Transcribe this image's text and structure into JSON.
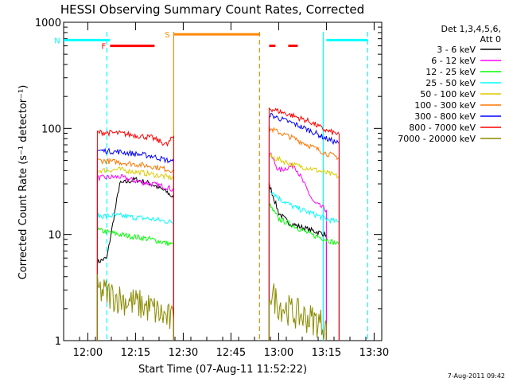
{
  "chart_data": {
    "type": "line",
    "title": "HESSI Observing Summary Count Rates, Corrected",
    "xlabel": "Start Time (07-Aug-11 11:52:22)",
    "ylabel": "Corrected Count Rate (s⁻¹ detector⁻¹)",
    "yscale": "log",
    "ylim": [
      1,
      1000
    ],
    "xlim_minutes_after_start": [
      0,
      100
    ],
    "x_ticks": [
      "12:00",
      "12:15",
      "12:30",
      "12:45",
      "13:00",
      "13:15",
      "13:30"
    ],
    "y_ticks": [
      "1",
      "10",
      "100",
      "1000"
    ],
    "legend_header": [
      "Det 1,3,4,5,6,",
      "Att 0"
    ],
    "legend_position": "right",
    "timestamp": "7-Aug-2011 09:42",
    "series": [
      {
        "name": "3 - 6 keV",
        "color": "#000000",
        "segments": [
          {
            "x": [
              "12:03",
              "12:06",
              "12:10",
              "12:15",
              "12:20",
              "12:25",
              "12:27"
            ],
            "y": [
              5.5,
              6,
              30,
              33,
              30,
              25,
              22
            ]
          },
          {
            "x": [
              "12:57",
              "13:00",
              "13:03",
              "13:06",
              "13:10",
              "13:15"
            ],
            "y": [
              30,
              16,
              13,
              12,
              11,
              10
            ]
          }
        ]
      },
      {
        "name": "6 - 12 keV",
        "color": "#ff00ff",
        "segments": [
          {
            "x": [
              "12:03",
              "12:10",
              "12:15",
              "12:20",
              "12:25",
              "12:27"
            ],
            "y": [
              34,
              35,
              32,
              30,
              28,
              26
            ]
          },
          {
            "x": [
              "12:57",
              "13:00",
              "13:05",
              "13:08",
              "13:11",
              "13:15"
            ],
            "y": [
              60,
              40,
              45,
              30,
              20,
              17
            ]
          }
        ]
      },
      {
        "name": "12 - 25 keV",
        "color": "#00ff00",
        "segments": [
          {
            "x": [
              "12:03",
              "12:10",
              "12:20",
              "12:27"
            ],
            "y": [
              11,
              10,
              9,
              8
            ]
          },
          {
            "x": [
              "12:57",
              "13:00",
              "13:05",
              "13:10",
              "13:15",
              "13:19"
            ],
            "y": [
              19,
              14,
              12,
              10,
              9,
              8
            ]
          }
        ]
      },
      {
        "name": "25 - 50 keV",
        "color": "#00ffff",
        "segments": [
          {
            "x": [
              "12:03",
              "12:10",
              "12:20",
              "12:27"
            ],
            "y": [
              15,
              15,
              14,
              13
            ]
          },
          {
            "x": [
              "12:57",
              "13:00",
              "13:05",
              "13:10",
              "13:15",
              "13:19"
            ],
            "y": [
              27,
              22,
              18,
              16,
              14,
              13
            ]
          }
        ]
      },
      {
        "name": "50 - 100 keV",
        "color": "#ddcc00",
        "segments": [
          {
            "x": [
              "12:03",
              "12:10",
              "12:20",
              "12:27"
            ],
            "y": [
              40,
              41,
              37,
              34
            ]
          },
          {
            "x": [
              "12:57",
              "13:05",
              "13:10",
              "13:15",
              "13:19"
            ],
            "y": [
              55,
              45,
              42,
              38,
              35
            ]
          }
        ]
      },
      {
        "name": "100 - 300 keV",
        "color": "#ff7700",
        "segments": [
          {
            "x": [
              "12:03",
              "12:10",
              "12:20",
              "12:27"
            ],
            "y": [
              50,
              48,
              44,
              40
            ]
          },
          {
            "x": [
              "12:57",
              "13:05",
              "13:10",
              "13:15",
              "13:19"
            ],
            "y": [
              100,
              80,
              68,
              58,
              53
            ]
          }
        ]
      },
      {
        "name": "300 - 800 keV",
        "color": "#0000ff",
        "segments": [
          {
            "x": [
              "12:03",
              "12:10",
              "12:20",
              "12:27"
            ],
            "y": [
              62,
              60,
              55,
              48
            ]
          },
          {
            "x": [
              "12:57",
              "13:05",
              "13:10",
              "13:15",
              "13:19"
            ],
            "y": [
              135,
              110,
              95,
              80,
              72
            ]
          }
        ]
      },
      {
        "name": "800 - 7000 keV",
        "color": "#ff0000",
        "segments": [
          {
            "x": [
              "12:03",
              "12:10",
              "12:20",
              "12:25",
              "12:27"
            ],
            "y": [
              92,
              90,
              82,
              70,
              85
            ]
          },
          {
            "x": [
              "12:57",
              "13:05",
              "13:10",
              "13:15",
              "13:19"
            ],
            "y": [
              155,
              130,
              115,
              95,
              88
            ]
          }
        ]
      },
      {
        "name": "7000 - 20000 keV",
        "color": "#8b8b00",
        "segments": [
          {
            "x": [
              "12:03",
              "12:10",
              "12:20",
              "12:27"
            ],
            "y": [
              3,
              2.5,
              2,
              1.5
            ]
          },
          {
            "x": [
              "12:57",
              "13:00",
              "13:05",
              "13:10",
              "13:15"
            ],
            "y": [
              3,
              2.2,
              1.8,
              1.6,
              1.4
            ]
          }
        ]
      }
    ],
    "flag_bars": [
      {
        "label": "F",
        "color": "#ff0000",
        "x": [
          "12:07",
          "12:21"
        ],
        "level": 600
      },
      {
        "label": "N",
        "color": "#00ffff",
        "x": [
          "11:52",
          "12:07"
        ],
        "level": 680
      },
      {
        "label": "S",
        "color": "#ff8800",
        "x": [
          "12:27",
          "12:54"
        ],
        "level": 770
      },
      {
        "label": "",
        "color": "#00ffff",
        "x": [
          "13:15",
          "13:28"
        ],
        "level": 680
      },
      {
        "label": "",
        "color": "#ff0000",
        "x": [
          "12:57",
          "12:59"
        ],
        "level": 600
      },
      {
        "label": "",
        "color": "#ff0000",
        "x": [
          "13:03",
          "13:06"
        ],
        "level": 600
      }
    ],
    "vertical_lines": [
      {
        "x": "12:06",
        "color": "#00ffff",
        "style": "dashed"
      },
      {
        "x": "12:27",
        "color": "#ff8800",
        "style": "solid"
      },
      {
        "x": "12:54",
        "color": "#ff8800",
        "style": "dashed"
      },
      {
        "x": "13:14",
        "color": "#00ffff",
        "style": "solid"
      },
      {
        "x": "13:28",
        "color": "#00ffff",
        "style": "dashed"
      }
    ]
  }
}
